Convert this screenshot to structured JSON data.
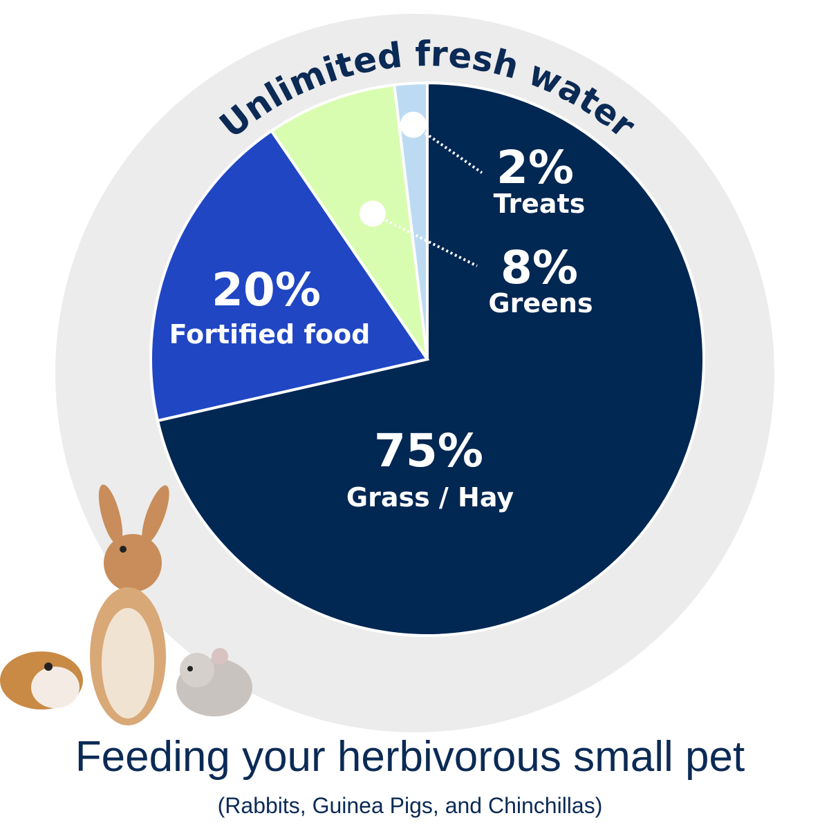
{
  "title": "Feeding your herbivorous small pet",
  "subtitle": "(Rabbits, Guinea Pigs, and Chinchillas)",
  "ring_label": "Unlimited fresh water",
  "colors": {
    "ring": "#ececec",
    "text": "#0b2a55"
  },
  "chart_data": {
    "type": "pie",
    "title": "",
    "slices": [
      {
        "pct": "75%",
        "label": "Grass / Hay",
        "value": 75,
        "color": "#012753"
      },
      {
        "pct": "20%",
        "label": "Fortified food",
        "value": 20,
        "color": "#2046c4"
      },
      {
        "pct": "8%",
        "label": "Greens",
        "value": 8,
        "color": "#d9fdb0"
      },
      {
        "pct": "2%",
        "label": "Treats",
        "value": 2,
        "color": "#bcdbf2"
      }
    ],
    "start": "12 o'clock, clockwise"
  }
}
